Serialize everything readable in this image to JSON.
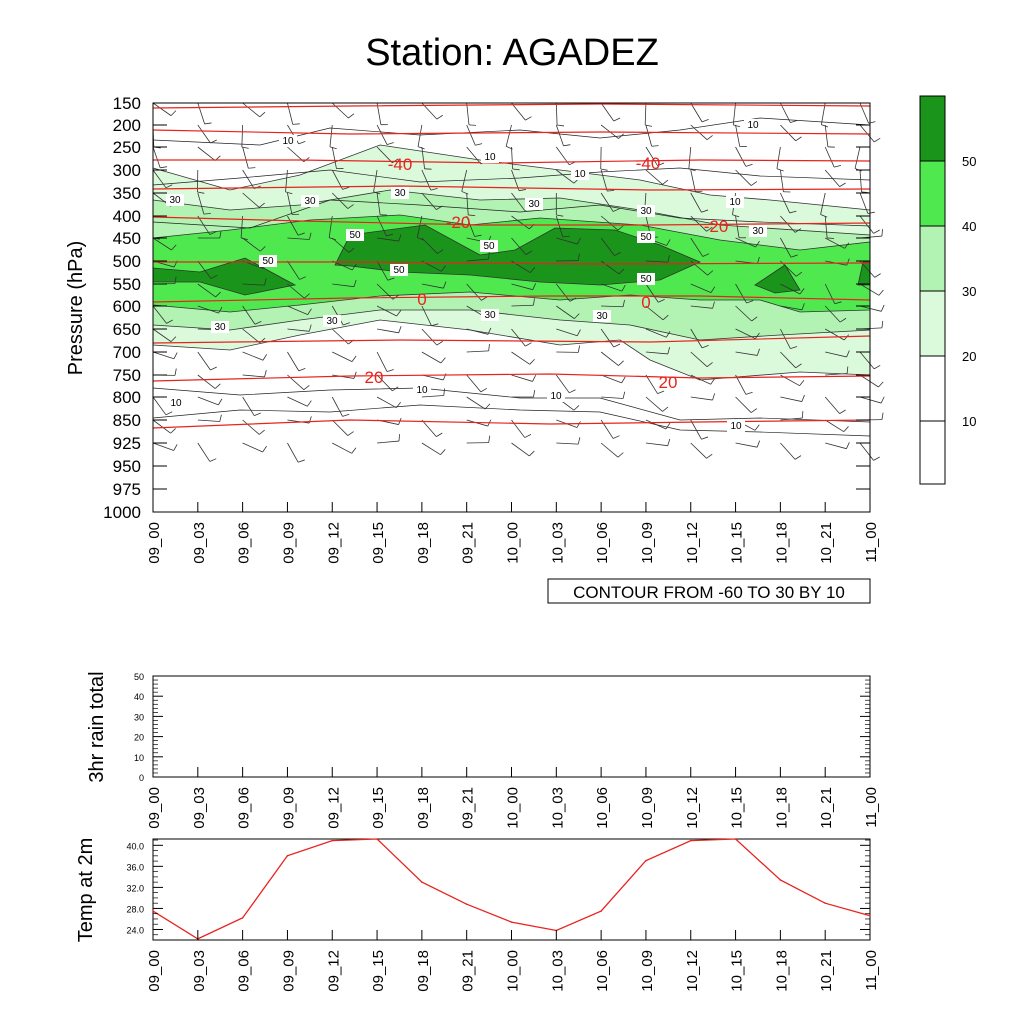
{
  "title": "Station: AGADEZ",
  "colors": {
    "shade_10_20": "#ffffff",
    "shade_20_30": "#dbf9db",
    "shade_30_40": "#b2f2b2",
    "shade_40_50": "#4fe94f",
    "shade_50_plus": "#1a941a",
    "temp_contour": "#e8231e",
    "axis": "#000000"
  },
  "contour_note": "CONTOUR FROM -60 TO 30 BY 10",
  "time_labels": [
    "09_00",
    "09_03",
    "09_06",
    "09_09",
    "09_12",
    "09_15",
    "09_18",
    "09_21",
    "10_00",
    "10_03",
    "10_06",
    "10_09",
    "10_12",
    "10_15",
    "10_18",
    "10_21",
    "11_00"
  ],
  "colorbar": {
    "levels": [
      "10",
      "20",
      "30",
      "40",
      "50"
    ]
  },
  "chart_data": [
    {
      "type": "heatmap",
      "title": "Station: AGADEZ",
      "xlabel": "",
      "ylabel": "Pressure (hPa)",
      "x_ticks": [
        "09_00",
        "09_03",
        "09_06",
        "09_09",
        "09_12",
        "09_15",
        "09_18",
        "09_21",
        "10_00",
        "10_03",
        "10_06",
        "10_09",
        "10_12",
        "10_15",
        "10_18",
        "10_21",
        "11_00"
      ],
      "y_ticks": [
        150,
        200,
        250,
        300,
        350,
        400,
        450,
        500,
        550,
        600,
        650,
        700,
        750,
        800,
        850,
        925,
        950,
        975,
        1000
      ],
      "shading_levels": [
        10,
        20,
        30,
        40,
        50
      ],
      "contour_labels_rh": [
        "10",
        "10",
        "10",
        "10",
        "10",
        "10",
        "10",
        "10",
        "10",
        "30",
        "30",
        "30",
        "30",
        "30",
        "30",
        "30",
        "30",
        "30",
        "30",
        "50",
        "50",
        "50",
        "50",
        "50",
        "50"
      ],
      "temperature_contours_C": [
        -40,
        -20,
        0,
        20
      ],
      "temperature_labels": [
        "-40",
        "-40",
        "-20",
        "-20",
        "0",
        "0",
        "20",
        "20"
      ],
      "note": "CONTOUR FROM -60 TO 30 BY 10"
    },
    {
      "type": "bar",
      "title": "",
      "ylabel": "3hr rain total",
      "categories": [
        "09_00",
        "09_03",
        "09_06",
        "09_09",
        "09_12",
        "09_15",
        "09_18",
        "09_21",
        "10_00",
        "10_03",
        "10_06",
        "10_09",
        "10_12",
        "10_15",
        "10_18",
        "10_21",
        "11_00"
      ],
      "values": [
        0,
        0,
        0,
        0,
        0,
        0,
        0,
        0,
        0,
        0,
        0,
        0,
        0,
        0,
        0,
        0,
        0
      ],
      "ylim": [
        0,
        50
      ],
      "y_ticks": [
        "0",
        "10",
        "20",
        "30",
        "40",
        "50"
      ]
    },
    {
      "type": "line",
      "title": "",
      "ylabel": "Temp at 2m",
      "categories": [
        "09_00",
        "09_03",
        "09_06",
        "09_09",
        "09_12",
        "09_15",
        "09_18",
        "09_21",
        "10_00",
        "10_03",
        "10_06",
        "10_09",
        "10_12",
        "10_15",
        "10_18",
        "10_21",
        "11_00"
      ],
      "values": [
        27.5,
        22.2,
        26.2,
        38.0,
        40.9,
        41.7,
        33.0,
        28.8,
        25.4,
        23.8,
        27.5,
        37.1,
        40.9,
        41.7,
        33.4,
        29.0,
        26.6
      ],
      "ylim": [
        22.0,
        41.2
      ],
      "y_ticks": [
        "24.0",
        "28.0",
        "32.0",
        "36.0",
        "40.0"
      ]
    }
  ]
}
